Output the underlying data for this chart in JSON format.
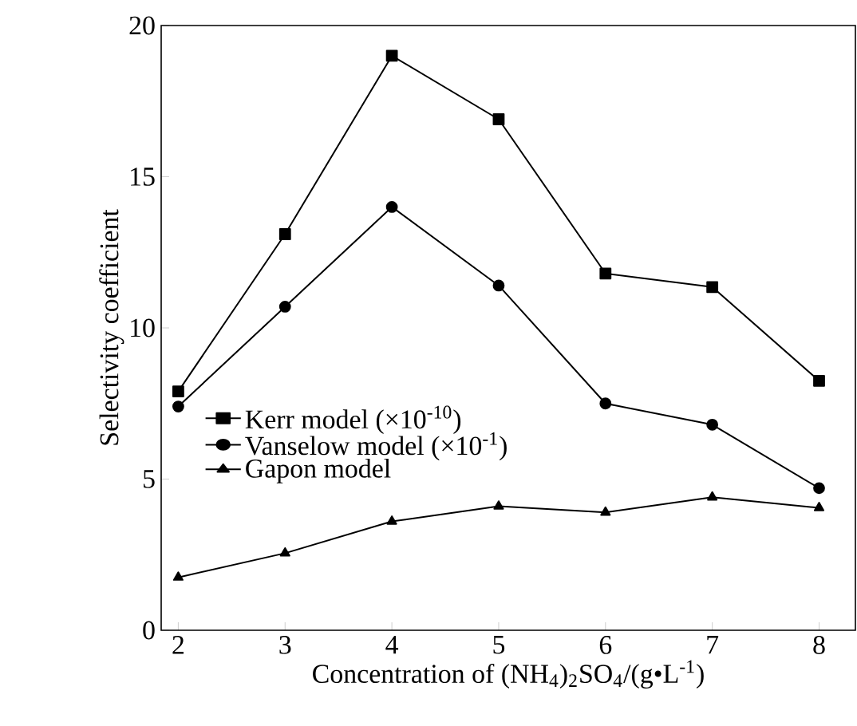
{
  "chart_data": {
    "type": "line",
    "xlabel": "Concentration of (NH$_{4}$)$_{2}$SO$_{4}$/(g•L$^{-1}$)",
    "ylabel": "Selectivity coefficient",
    "x": [
      2,
      3,
      4,
      5,
      6,
      7,
      8
    ],
    "series": [
      {
        "name": "Kerr model (×10$^{-10}$)",
        "color": "#000000",
        "marker": "square",
        "values": [
          7.9,
          13.1,
          19.0,
          16.9,
          11.8,
          11.35,
          8.25
        ]
      },
      {
        "name": "Vanselow model (×10$^{-1}$)",
        "color": "#000000",
        "marker": "circle",
        "values": [
          7.4,
          10.7,
          14.0,
          11.4,
          7.5,
          6.8,
          4.7
        ]
      },
      {
        "name": "Gapon model",
        "color": "#000000",
        "marker": "triangle",
        "values": [
          1.75,
          2.55,
          3.6,
          4.1,
          3.9,
          4.4,
          4.05
        ]
      }
    ],
    "xlim": [
      1.84,
      8.34
    ],
    "ylim": [
      0,
      20
    ],
    "xticks": [
      2,
      3,
      4,
      5,
      6,
      7,
      8
    ],
    "yticks": [
      0,
      5,
      10,
      15,
      20
    ],
    "legend": "left",
    "grid": false,
    "line_style": "solid"
  }
}
